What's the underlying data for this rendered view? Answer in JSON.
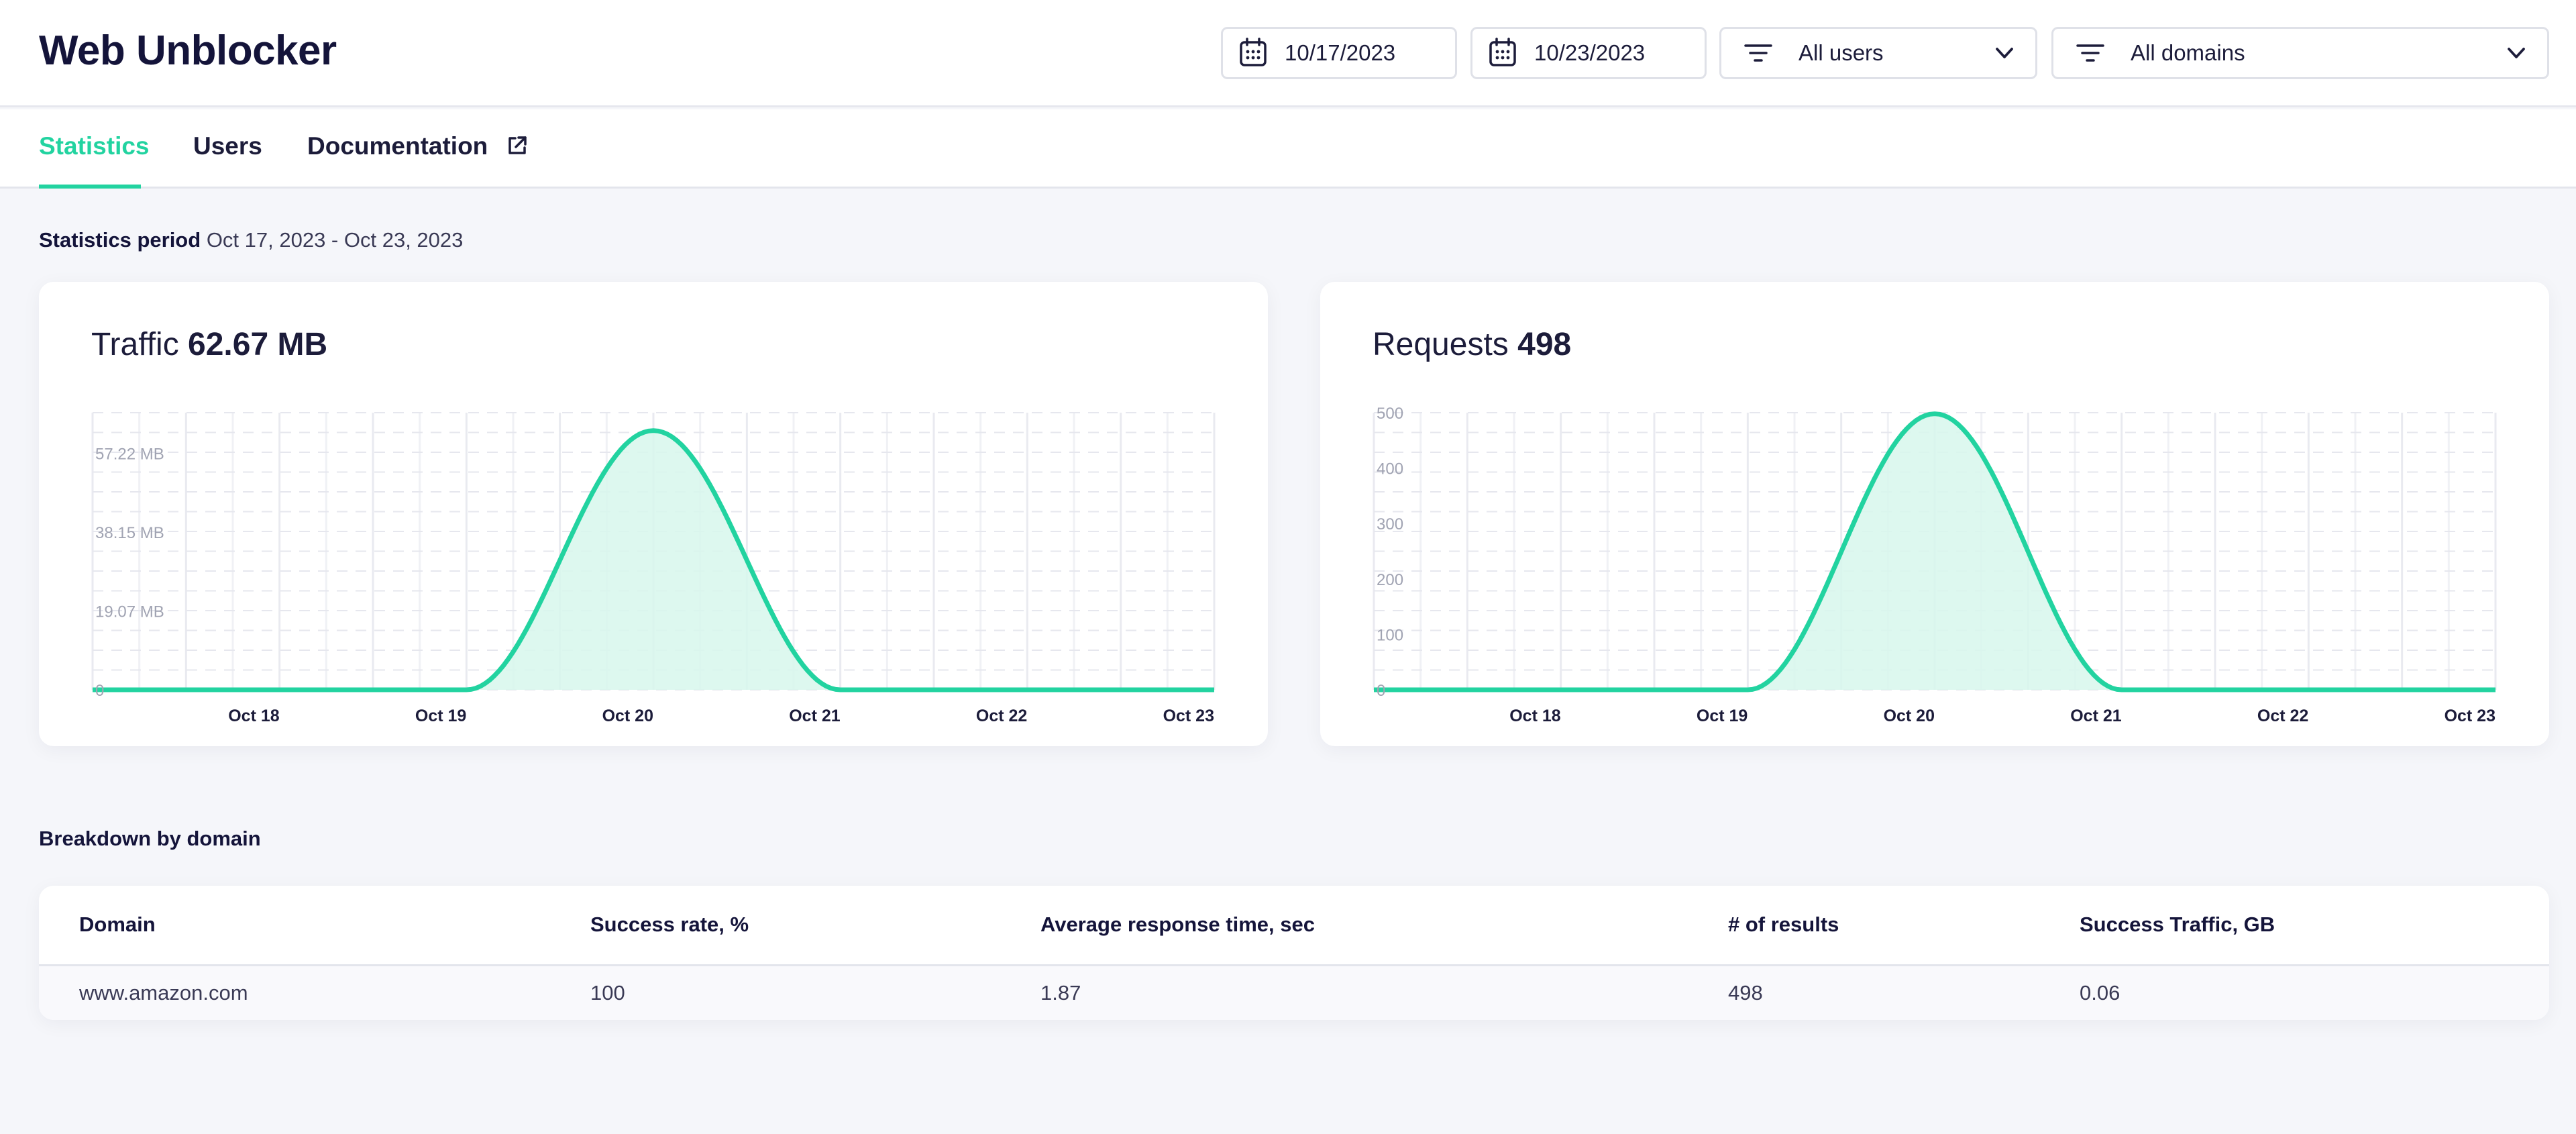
{
  "app": {
    "title": "Web Unblocker"
  },
  "filters": {
    "date_from": "10/17/2023",
    "date_to": "10/23/2023",
    "users": "All users",
    "domains": "All domains"
  },
  "tabs": [
    {
      "label": "Statistics",
      "active": true
    },
    {
      "label": "Users",
      "active": false
    },
    {
      "label": "Documentation",
      "active": false
    }
  ],
  "period": {
    "label": "Statistics period",
    "value": "Oct 17, 2023 - Oct 23, 2023"
  },
  "colors": {
    "accent": "#22d3a0",
    "accent_fill": "#d7f7ec",
    "text": "#14143a"
  },
  "cards": {
    "traffic": {
      "label": "Traffic",
      "value": "62.67 MB"
    },
    "requests": {
      "label": "Requests",
      "value": "498"
    }
  },
  "chart_data": [
    {
      "type": "area",
      "x": [
        "Oct 17",
        "Oct 18",
        "Oct 19",
        "Oct 20",
        "Oct 21",
        "Oct 22",
        "Oct 23"
      ],
      "x_tick_labels": [
        "Oct 18",
        "Oct 19",
        "Oct 20",
        "Oct 21",
        "Oct 22",
        "Oct 23"
      ],
      "series": [
        {
          "values": [
            0,
            0,
            0,
            62.67,
            0,
            0,
            0
          ]
        }
      ],
      "y_ticks": [
        0,
        19.07,
        38.15,
        57.22
      ],
      "y_tick_labels": [
        "0",
        "19.07 MB",
        "38.15 MB",
        "57.22 MB"
      ],
      "ylim": [
        0,
        67
      ],
      "grid": true,
      "smooth": true
    },
    {
      "type": "area",
      "x": [
        "Oct 17",
        "Oct 18",
        "Oct 19",
        "Oct 20",
        "Oct 21",
        "Oct 22",
        "Oct 23"
      ],
      "x_tick_labels": [
        "Oct 18",
        "Oct 19",
        "Oct 20",
        "Oct 21",
        "Oct 22",
        "Oct 23"
      ],
      "series": [
        {
          "values": [
            0,
            0,
            0,
            498,
            0,
            0,
            0
          ]
        }
      ],
      "y_ticks": [
        0,
        100,
        200,
        300,
        400,
        500
      ],
      "y_tick_labels": [
        "0",
        "100",
        "200",
        "300",
        "400",
        "500"
      ],
      "ylim": [
        0,
        500
      ],
      "grid": true,
      "smooth": true
    }
  ],
  "breakdown": {
    "title": "Breakdown by domain",
    "columns": [
      "Domain",
      "Success rate, %",
      "Average response time, sec",
      "# of results",
      "Success Traffic, GB"
    ],
    "rows": [
      [
        "www.amazon.com",
        "100",
        "1.87",
        "498",
        "0.06"
      ]
    ]
  }
}
